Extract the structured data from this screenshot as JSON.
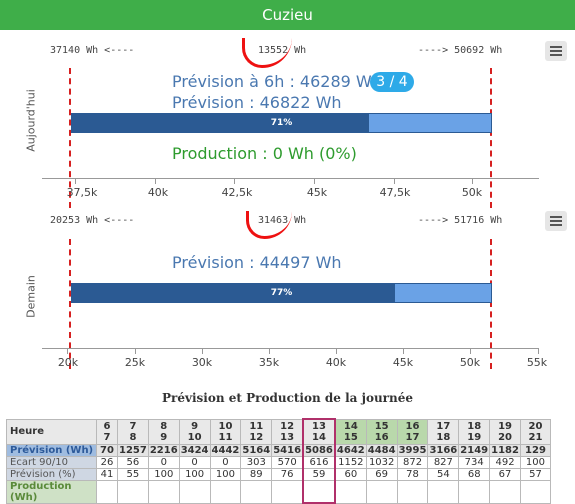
{
  "title": "Cuzieu",
  "today": {
    "ylabel": "Aujourd'hui",
    "left_bound": "37140 Wh <----",
    "center_value": "13552 Wh",
    "right_bound": "----> 50692 Wh",
    "forecast_6h": "Prévision à 6h : 46289 Wh",
    "badge": "3 / 4",
    "forecast": "Prévision : 46822 Wh",
    "bar_percent_label": "71%",
    "bar_fill": 0.71,
    "production": "Production : 0 Wh (0%)",
    "ticks": [
      "37,5k",
      "40k",
      "42,5k",
      "45k",
      "47,5k",
      "50k"
    ]
  },
  "tomorrow": {
    "ylabel": "Demain",
    "left_bound": "20253 Wh <----",
    "center_value": "31463 Wh",
    "right_bound": "----> 51716 Wh",
    "forecast": "Prévision : 44497 Wh",
    "bar_percent_label": "77%",
    "bar_fill": 0.77,
    "ticks": [
      "20k",
      "25k",
      "30k",
      "35k",
      "40k",
      "45k",
      "50k",
      "55k"
    ]
  },
  "table": {
    "title": "Prévision et Production de la journée",
    "header_label": "Heure",
    "hours": [
      [
        "6",
        "7"
      ],
      [
        "7",
        "8"
      ],
      [
        "8",
        "9"
      ],
      [
        "9",
        "10"
      ],
      [
        "10",
        "11"
      ],
      [
        "11",
        "12"
      ],
      [
        "12",
        "13"
      ],
      [
        "13",
        "14"
      ],
      [
        "14",
        "15"
      ],
      [
        "15",
        "16"
      ],
      [
        "16",
        "17"
      ],
      [
        "17",
        "18"
      ],
      [
        "18",
        "19"
      ],
      [
        "19",
        "20"
      ],
      [
        "20",
        "21"
      ]
    ],
    "rows": [
      {
        "label": "Prévision (Wh)",
        "values": [
          "70",
          "1257",
          "2216",
          "3424",
          "4442",
          "5164",
          "5416",
          "5086",
          "4642",
          "4484",
          "3995",
          "3166",
          "2149",
          "1182",
          "129"
        ]
      },
      {
        "label": "Ecart 90/10",
        "values": [
          "26",
          "56",
          "0",
          "0",
          "0",
          "303",
          "570",
          "616",
          "1152",
          "1032",
          "872",
          "827",
          "734",
          "492",
          "100"
        ]
      },
      {
        "label": "Prévision (%)",
        "values": [
          "41",
          "55",
          "100",
          "100",
          "100",
          "89",
          "76",
          "59",
          "60",
          "69",
          "78",
          "54",
          "68",
          "67",
          "57"
        ]
      },
      {
        "label": "Production (Wh)",
        "values": [
          "",
          "",
          "",
          "",
          "",
          "",
          "",
          "",
          "",
          "",
          "",
          "",
          "",
          "",
          ""
        ]
      }
    ]
  },
  "colors": {
    "title_bar": "#3fae49",
    "forecast_text": "#4a78b0",
    "production_text": "#2e9b2e",
    "bar_dark": "#2b5a93",
    "bar_light": "#6aa2e6",
    "badge": "#2eaae8",
    "bound_line": "#d62020"
  },
  "icons": {
    "menu": "hamburger-menu-icon"
  }
}
